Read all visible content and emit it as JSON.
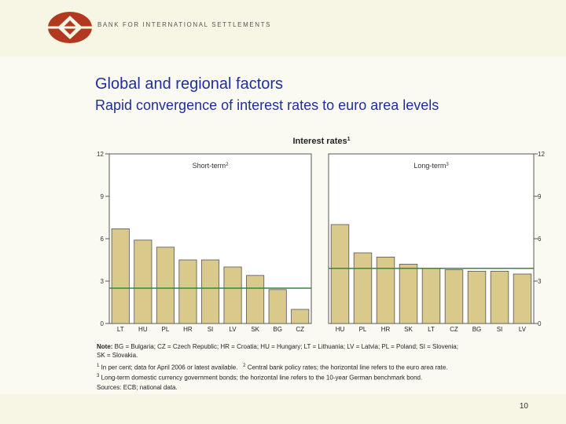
{
  "header": {
    "bank_name": "BANK FOR INTERNATIONAL SETTLEMENTS"
  },
  "slide": {
    "title": "Global and regional factors",
    "subtitle": "Rapid convergence of interest rates to euro area levels",
    "page_number": "10"
  },
  "chart_data": [
    {
      "type": "bar",
      "title": "Interest rates",
      "title_footnote": "1",
      "panel_label": "Short-term",
      "panel_footnote": "2",
      "categories": [
        "LT",
        "HU",
        "PL",
        "HR",
        "SI",
        "LV",
        "SK",
        "BG",
        "CZ"
      ],
      "values": [
        6.7,
        5.9,
        5.4,
        4.5,
        4.5,
        4.0,
        3.4,
        2.4,
        1.0
      ],
      "reference_line": 2.5,
      "ylim": [
        0,
        12
      ],
      "yticks": [
        0,
        3,
        6,
        9,
        12
      ],
      "bar_color": "#d9c98b",
      "line_color": "#2f8a3c"
    },
    {
      "type": "bar",
      "panel_label": "Long-term",
      "panel_footnote": "3",
      "categories": [
        "HU",
        "PL",
        "HR",
        "SK",
        "LT",
        "CZ",
        "BG",
        "SI",
        "LV"
      ],
      "values": [
        7.0,
        5.0,
        4.7,
        4.2,
        3.9,
        3.8,
        3.7,
        3.7,
        3.5
      ],
      "reference_line": 3.9,
      "ylim": [
        0,
        12
      ],
      "yticks": [
        0,
        3,
        6,
        9,
        12
      ],
      "bar_color": "#d9c98b",
      "line_color": "#2f8a3c"
    }
  ],
  "notes": {
    "main_prefix": "Note:",
    "main_text": " BG = Bulgaria; CZ = Czech Republic; HR = Croatia; HU = Hungary; LT = Lithuania; LV = Latvia; PL = Poland; SI = Slovenia;",
    "main_line2": "SK = Slovakia.",
    "fn1_num": "1",
    "fn1_text": " In per cent; data for April 2006 or latest available.",
    "fn2_num": "2",
    "fn2_text": " Central bank policy rates; the horizontal line refers to the euro area rate.",
    "fn3_num": "3",
    "fn3_text": " Long-term domestic currency government bonds; the horizontal line refers to the 10-year German benchmark bond.",
    "sources": "Sources: ECB; national data."
  }
}
